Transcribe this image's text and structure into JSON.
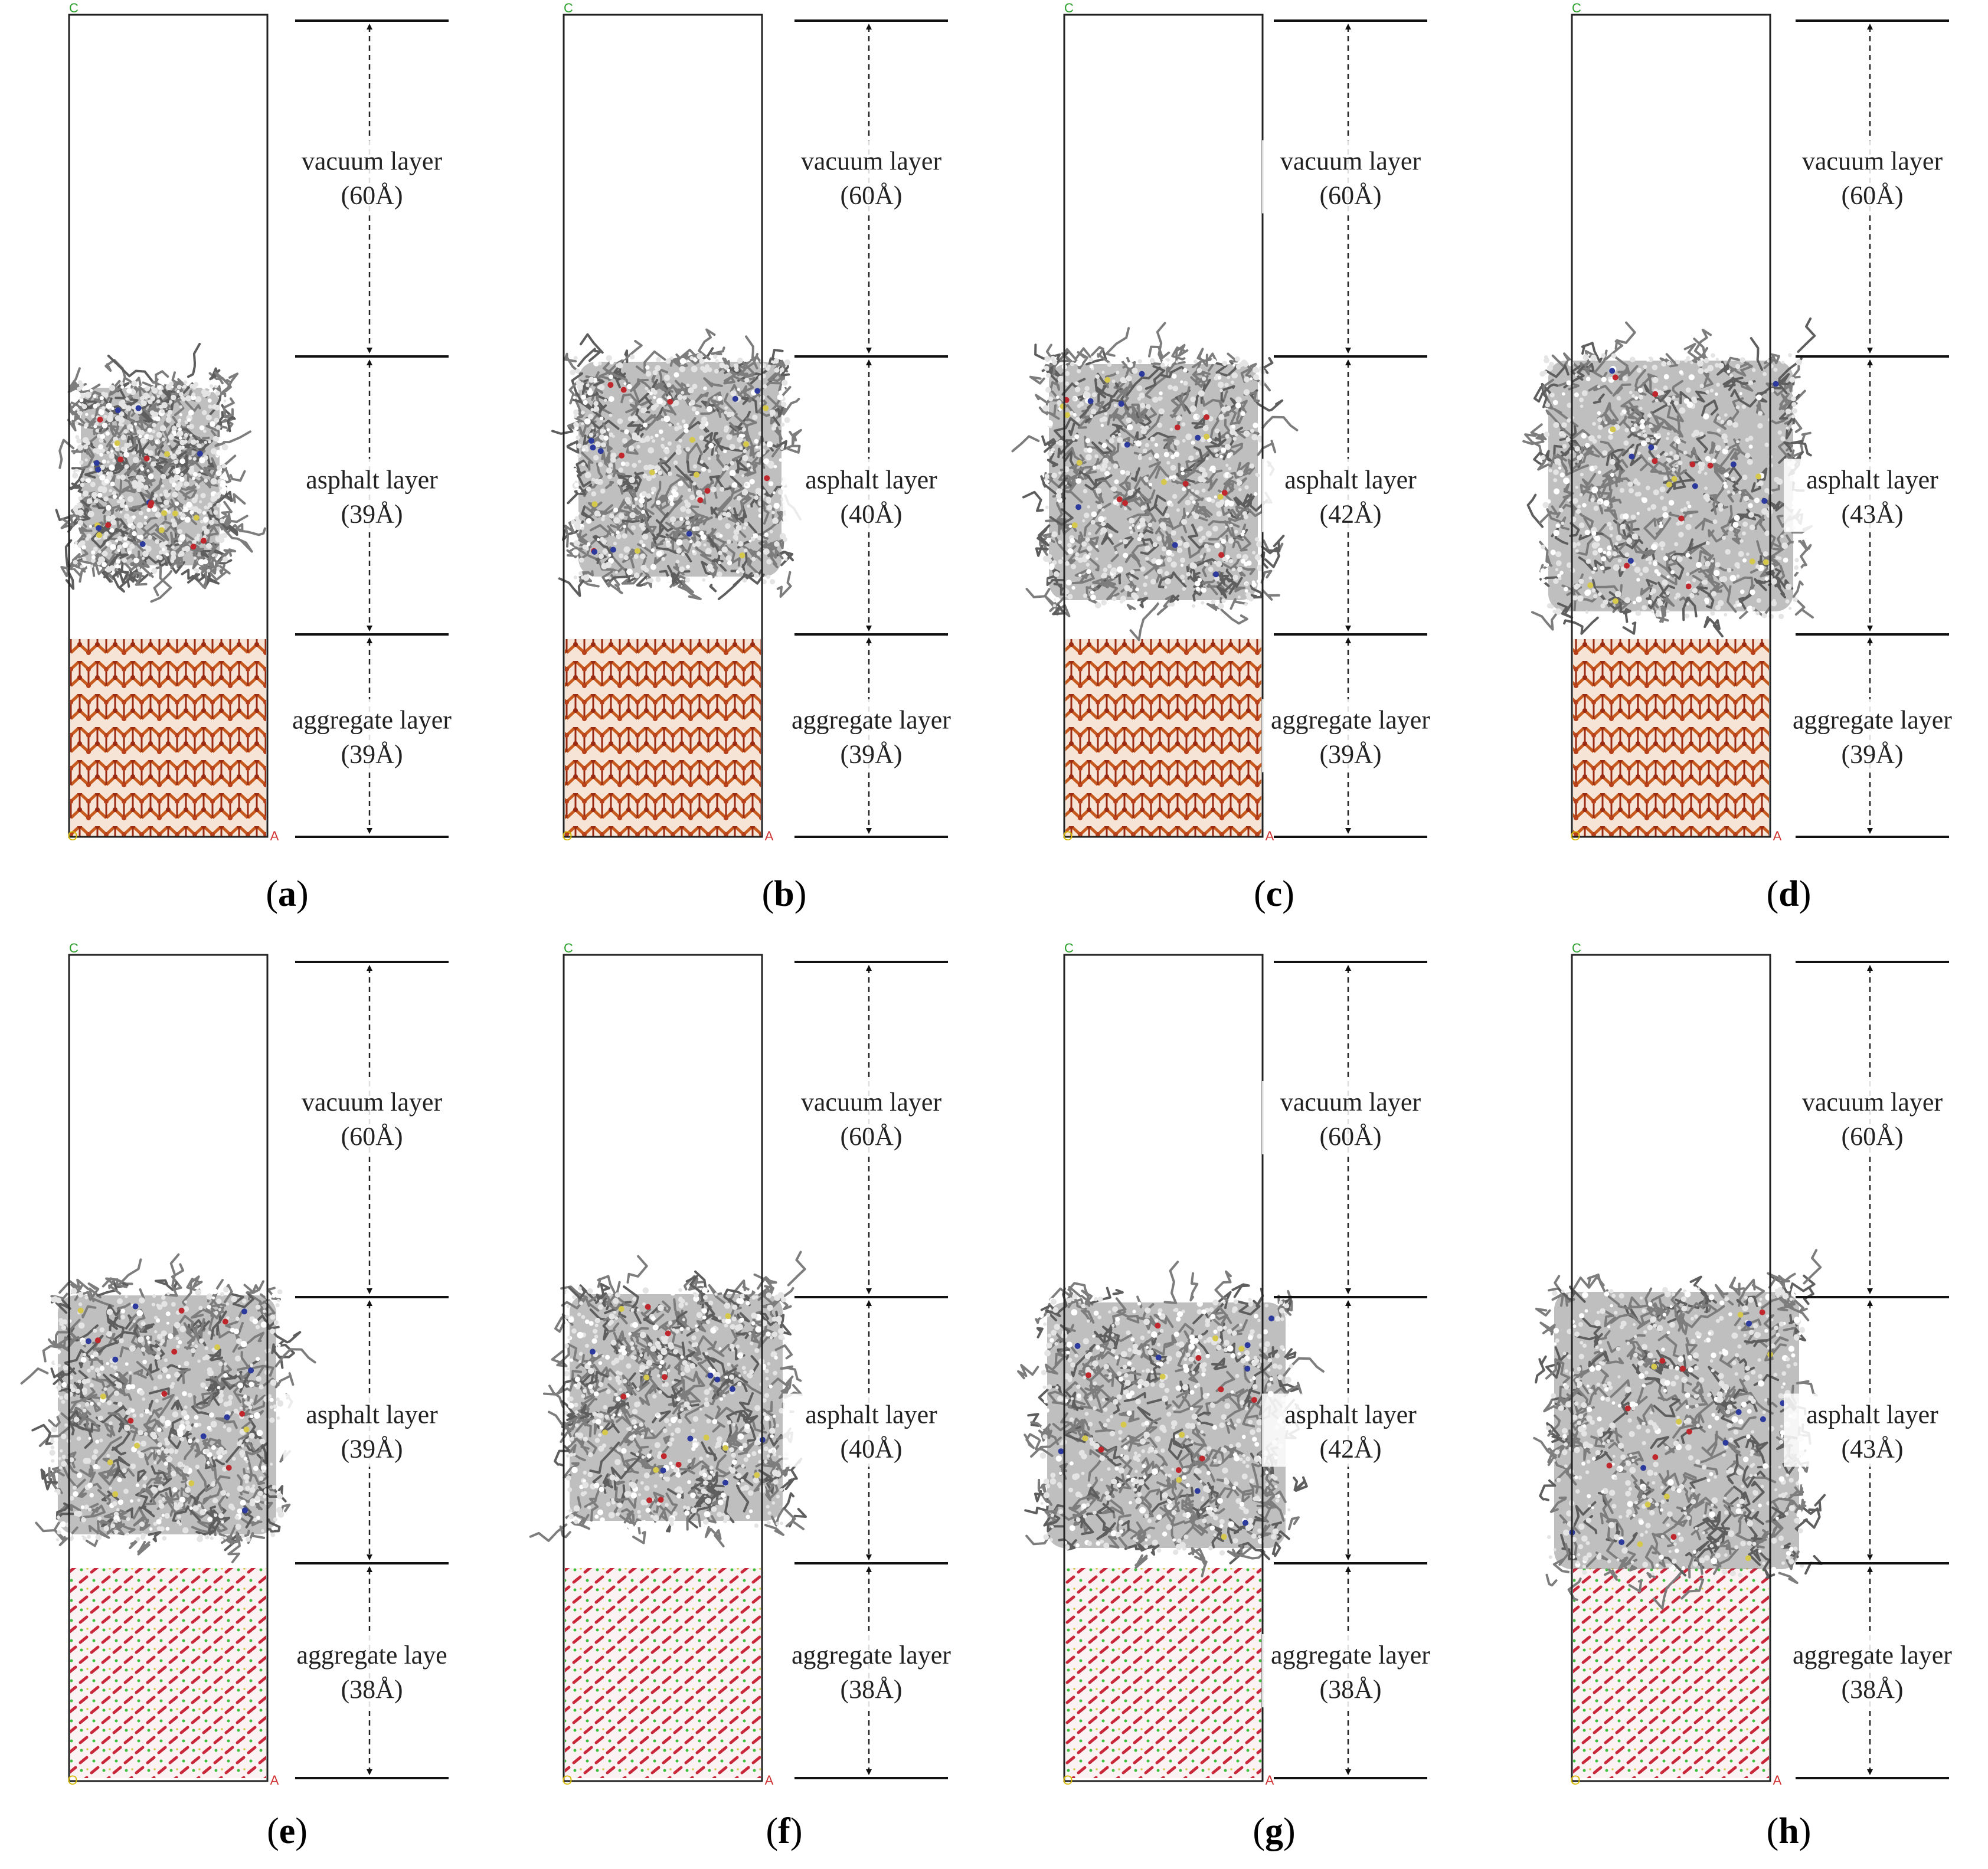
{
  "panels": [
    {
      "caption_open": "(",
      "caption_letter": "a",
      "caption_close": ")",
      "aggregate_style": "crystal",
      "vacuum": {
        "name": "vacuum layer",
        "thickness": "(60Å)"
      },
      "asphalt": {
        "name": "asphalt layer",
        "thickness": "(39Å)"
      },
      "aggregate": {
        "name": "aggregate layer",
        "thickness": "(39Å)"
      }
    },
    {
      "caption_open": "(",
      "caption_letter": "b",
      "caption_close": ")",
      "aggregate_style": "crystal",
      "vacuum": {
        "name": "vacuum layer",
        "thickness": "(60Å)"
      },
      "asphalt": {
        "name": "asphalt layer",
        "thickness": "(40Å)"
      },
      "aggregate": {
        "name": "aggregate layer",
        "thickness": "(39Å)"
      }
    },
    {
      "caption_open": "(",
      "caption_letter": "c",
      "caption_close": ")",
      "aggregate_style": "crystal",
      "vacuum": {
        "name": "vacuum layer",
        "thickness": "(60Å)"
      },
      "asphalt": {
        "name": "asphalt layer",
        "thickness": "(42Å)"
      },
      "aggregate": {
        "name": "aggregate layer",
        "thickness": "(39Å)"
      }
    },
    {
      "caption_open": "(",
      "caption_letter": "d",
      "caption_close": ")",
      "aggregate_style": "crystal",
      "vacuum": {
        "name": "vacuum layer",
        "thickness": "(60Å)"
      },
      "asphalt": {
        "name": "asphalt layer",
        "thickness": "(43Å)"
      },
      "aggregate": {
        "name": "aggregate layer",
        "thickness": "(39Å)"
      }
    },
    {
      "caption_open": "(",
      "caption_letter": "e",
      "caption_close": ")",
      "aggregate_style": "mineral",
      "vacuum": {
        "name": "vacuum layer",
        "thickness": "(60Å)"
      },
      "asphalt": {
        "name": "asphalt layer",
        "thickness": "(39Å)"
      },
      "aggregate": {
        "name": "aggregate laye",
        "thickness": "(38Å)"
      }
    },
    {
      "caption_open": "(",
      "caption_letter": "f",
      "caption_close": ")",
      "aggregate_style": "mineral",
      "vacuum": {
        "name": "vacuum layer",
        "thickness": "(60Å)"
      },
      "asphalt": {
        "name": "asphalt layer",
        "thickness": "(40Å)"
      },
      "aggregate": {
        "name": "aggregate layer",
        "thickness": "(38Å)"
      }
    },
    {
      "caption_open": "(",
      "caption_letter": "g",
      "caption_close": ")",
      "aggregate_style": "mineral",
      "vacuum": {
        "name": "vacuum layer",
        "thickness": "(60Å)"
      },
      "asphalt": {
        "name": "asphalt layer",
        "thickness": "(42Å)"
      },
      "aggregate": {
        "name": "aggregate layer",
        "thickness": "(38Å)"
      }
    },
    {
      "caption_open": "(",
      "caption_letter": "h",
      "caption_close": ")",
      "aggregate_style": "mineral",
      "vacuum": {
        "name": "vacuum layer",
        "thickness": "(60Å)"
      },
      "asphalt": {
        "name": "asphalt layer",
        "thickness": "(43Å)"
      },
      "aggregate": {
        "name": "aggregate layer",
        "thickness": "(38Å)"
      }
    }
  ],
  "cell_axis_labels": {
    "top_left": "C",
    "bottom_left": "O",
    "bottom_right": "A"
  },
  "colors": {
    "cell_border": "#222222",
    "asphalt_molecule": "#8a8a8a",
    "asphalt_highlight": "#e4e4e4",
    "heteroatom_nitrogen": "#2b3a9c",
    "heteroatom_oxygen": "#c0272d",
    "heteroatom_sulfur": "#d6c84a",
    "aggregate_bond_orange": "#c65a1e",
    "aggregate_bond_red": "#9a2a12",
    "mineral_red": "#c8283a",
    "mineral_green": "#3fbf3f",
    "axis_green": "#2ca02c",
    "axis_red": "#d03030",
    "axis_yellow": "#d6b800"
  }
}
